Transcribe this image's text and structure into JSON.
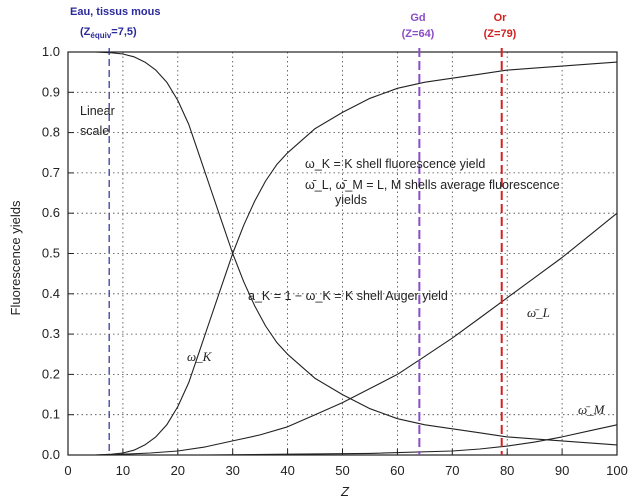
{
  "chart_data": {
    "type": "line",
    "title": "",
    "xlabel": "Z",
    "ylabel": "Fluorescence yields",
    "xlim": [
      0,
      100
    ],
    "ylim": [
      0,
      1.0
    ],
    "xticks": [
      0,
      10,
      20,
      30,
      40,
      50,
      60,
      70,
      80,
      90,
      100
    ],
    "yticks": [
      0.0,
      0.1,
      0.2,
      0.3,
      0.4,
      0.5,
      0.6,
      0.7,
      0.8,
      0.9,
      1.0
    ],
    "grid": true,
    "series": [
      {
        "name": "ω_K",
        "x": [
          5,
          8,
          10,
          12,
          14,
          16,
          18,
          20,
          22,
          24,
          26,
          28,
          30,
          32,
          34,
          36,
          38,
          40,
          45,
          50,
          55,
          60,
          65,
          70,
          75,
          80,
          85,
          90,
          95,
          100
        ],
        "y": [
          0.0,
          0.002,
          0.005,
          0.012,
          0.025,
          0.045,
          0.075,
          0.12,
          0.18,
          0.26,
          0.34,
          0.42,
          0.5,
          0.57,
          0.63,
          0.68,
          0.72,
          0.75,
          0.81,
          0.85,
          0.885,
          0.91,
          0.925,
          0.935,
          0.945,
          0.955,
          0.96,
          0.965,
          0.97,
          0.975
        ]
      },
      {
        "name": "a_K = 1 − ω_K",
        "x": [
          5,
          8,
          10,
          12,
          14,
          16,
          18,
          20,
          22,
          24,
          26,
          28,
          30,
          32,
          34,
          36,
          38,
          40,
          45,
          50,
          55,
          60,
          65,
          70,
          75,
          80,
          85,
          90,
          95,
          100
        ],
        "y": [
          1.0,
          0.998,
          0.995,
          0.988,
          0.975,
          0.955,
          0.925,
          0.88,
          0.82,
          0.74,
          0.66,
          0.58,
          0.5,
          0.43,
          0.37,
          0.32,
          0.28,
          0.25,
          0.19,
          0.15,
          0.115,
          0.09,
          0.075,
          0.065,
          0.055,
          0.045,
          0.04,
          0.035,
          0.03,
          0.025
        ]
      },
      {
        "name": "ω̄_L",
        "x": [
          5,
          10,
          15,
          20,
          25,
          30,
          35,
          40,
          45,
          50,
          55,
          60,
          65,
          70,
          75,
          80,
          85,
          90,
          95,
          100
        ],
        "y": [
          0.0,
          0.002,
          0.005,
          0.01,
          0.02,
          0.035,
          0.05,
          0.07,
          0.1,
          0.13,
          0.165,
          0.2,
          0.245,
          0.29,
          0.34,
          0.39,
          0.44,
          0.49,
          0.545,
          0.6
        ]
      },
      {
        "name": "ω̄_M",
        "x": [
          25,
          40,
          55,
          70,
          75,
          80,
          85,
          90,
          95,
          100
        ],
        "y": [
          0.0,
          0.002,
          0.004,
          0.01,
          0.015,
          0.022,
          0.032,
          0.045,
          0.06,
          0.075
        ]
      }
    ],
    "reference_lines": [
      {
        "x": 7.5,
        "label": "Eau, tissus mous",
        "sublabel_pre": "(Z",
        "sublabel_sub": "équiv",
        "sublabel_post": "=7,5)",
        "color": "#2a2a9a"
      },
      {
        "x": 64,
        "label": "Gd",
        "sublabel": "(Z=64)",
        "color": "#8a4cc8"
      },
      {
        "x": 79,
        "label": "Or",
        "sublabel": "(Z=79)",
        "color": "#d42020"
      }
    ],
    "annotations": {
      "linear_scale": [
        "Linear",
        "scale"
      ],
      "omega_k_def": "ω_K = K shell fluorescence yield",
      "omega_lm_def": [
        "ω̄_L, ω̄_M = L, M shells average fluorescence",
        "yields"
      ],
      "auger_def": "a_K = 1 − ω_K = K shell Auger yield",
      "label_omega_k": "ω_K",
      "label_omega_l": "ω̄_L",
      "label_omega_m": "ω̄_M"
    }
  }
}
